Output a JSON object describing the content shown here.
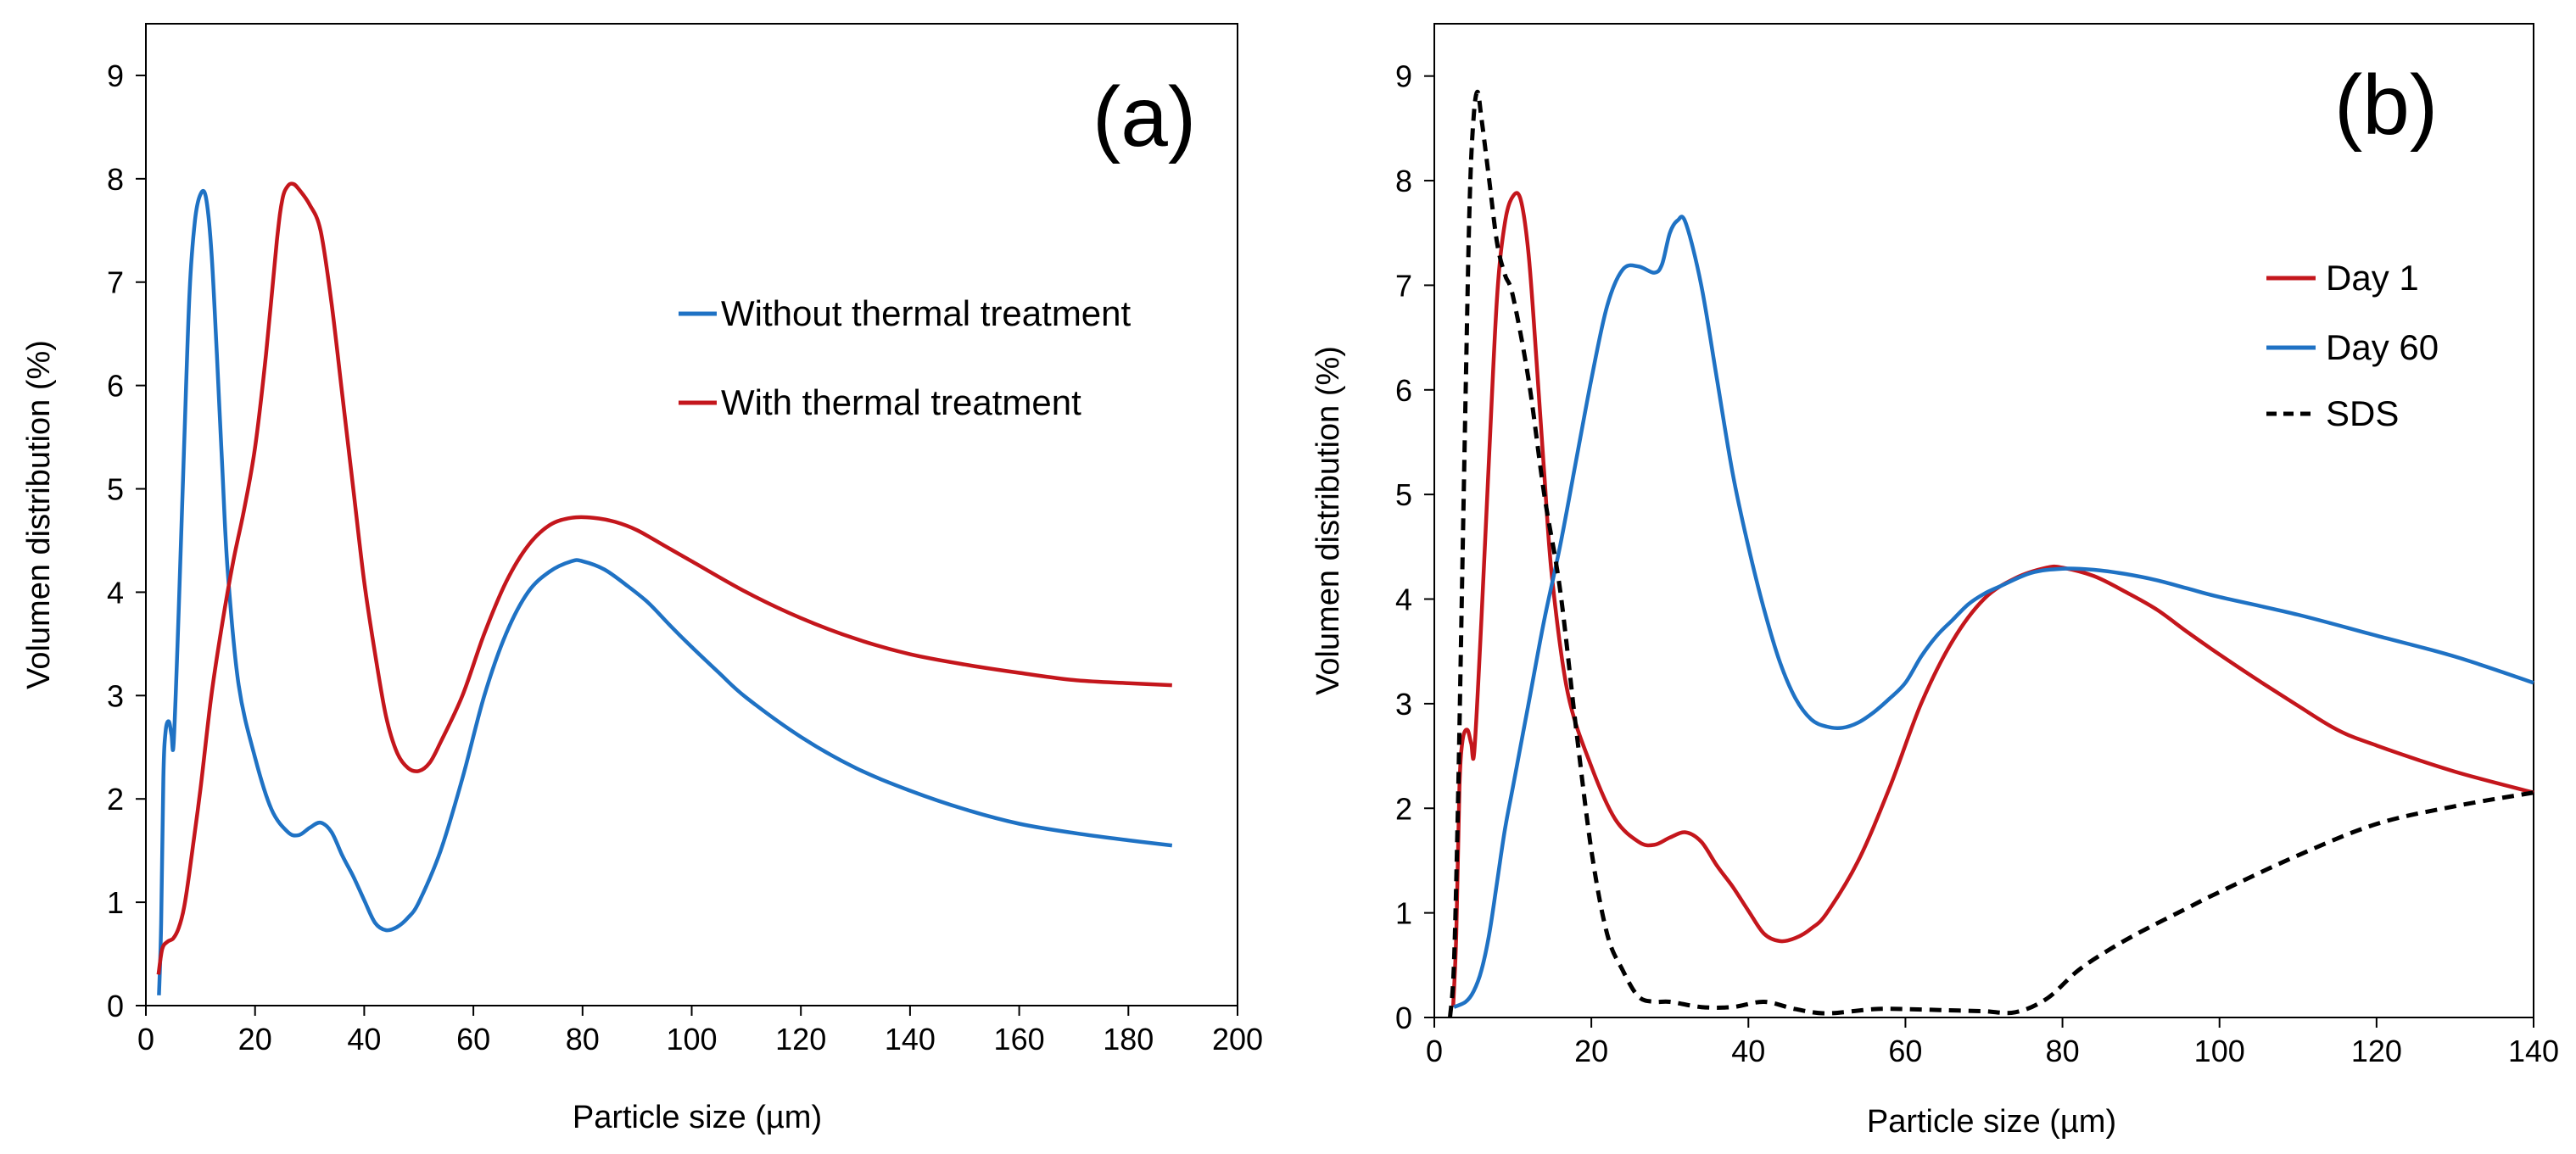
{
  "chart_data": [
    {
      "type": "line",
      "panel_label": "(a)",
      "xlabel": "Particle size (µm)",
      "ylabel": "Volumen distribution (%)",
      "xlim": [
        0,
        200
      ],
      "ylim": [
        0,
        9.5
      ],
      "xticks": [
        0,
        20,
        40,
        60,
        80,
        100,
        120,
        140,
        160,
        180,
        200
      ],
      "yticks": [
        0,
        1,
        2,
        3,
        4,
        5,
        6,
        7,
        8,
        9
      ],
      "grid": false,
      "legend_position": "top-right",
      "series": [
        {
          "name": "Without thermal treatment",
          "color": "#1f72c4",
          "dash": "solid",
          "points": [
            [
              2.4,
              0.1
            ],
            [
              2.8,
              0.8
            ],
            [
              3.2,
              2.2
            ],
            [
              3.6,
              2.65
            ],
            [
              4.2,
              2.75
            ],
            [
              4.7,
              2.62
            ],
            [
              5.1,
              2.55
            ],
            [
              6,
              3.8
            ],
            [
              7,
              5.4
            ],
            [
              8,
              6.9
            ],
            [
              9,
              7.6
            ],
            [
              10,
              7.85
            ],
            [
              11,
              7.82
            ],
            [
              12,
              7.3
            ],
            [
              13,
              6.3
            ],
            [
              14,
              5.2
            ],
            [
              15,
              4.2
            ],
            [
              17,
              3.1
            ],
            [
              20,
              2.4
            ],
            [
              23,
              1.9
            ],
            [
              26,
              1.68
            ],
            [
              28,
              1.65
            ],
            [
              30,
              1.72
            ],
            [
              32,
              1.77
            ],
            [
              34,
              1.68
            ],
            [
              36,
              1.45
            ],
            [
              38,
              1.25
            ],
            [
              40,
              1.02
            ],
            [
              42,
              0.8
            ],
            [
              44,
              0.73
            ],
            [
              46,
              0.76
            ],
            [
              48,
              0.85
            ],
            [
              50,
              1.0
            ],
            [
              54,
              1.5
            ],
            [
              58,
              2.2
            ],
            [
              62,
              3.0
            ],
            [
              66,
              3.6
            ],
            [
              70,
              4.0
            ],
            [
              74,
              4.2
            ],
            [
              78,
              4.3
            ],
            [
              80,
              4.3
            ],
            [
              84,
              4.22
            ],
            [
              88,
              4.07
            ],
            [
              92,
              3.9
            ],
            [
              96,
              3.68
            ],
            [
              100,
              3.47
            ],
            [
              105,
              3.22
            ],
            [
              110,
              2.98
            ],
            [
              120,
              2.6
            ],
            [
              130,
              2.3
            ],
            [
              140,
              2.08
            ],
            [
              150,
              1.9
            ],
            [
              160,
              1.76
            ],
            [
              170,
              1.67
            ],
            [
              180,
              1.6
            ],
            [
              188,
              1.55
            ]
          ]
        },
        {
          "name": "With thermal treatment",
          "color": "#c4161c",
          "dash": "solid",
          "points": [
            [
              2.3,
              0.3
            ],
            [
              3,
              0.55
            ],
            [
              4,
              0.62
            ],
            [
              5,
              0.65
            ],
            [
              6,
              0.75
            ],
            [
              7,
              0.95
            ],
            [
              8,
              1.3
            ],
            [
              10,
              2.1
            ],
            [
              12,
              3.0
            ],
            [
              14,
              3.7
            ],
            [
              16,
              4.3
            ],
            [
              18,
              4.8
            ],
            [
              20,
              5.4
            ],
            [
              22,
              6.3
            ],
            [
              24,
              7.4
            ],
            [
              25,
              7.8
            ],
            [
              26,
              7.93
            ],
            [
              27,
              7.95
            ],
            [
              28,
              7.9
            ],
            [
              30,
              7.75
            ],
            [
              32,
              7.5
            ],
            [
              34,
              6.8
            ],
            [
              36,
              5.9
            ],
            [
              38,
              5.0
            ],
            [
              40,
              4.1
            ],
            [
              42,
              3.4
            ],
            [
              44,
              2.8
            ],
            [
              46,
              2.45
            ],
            [
              48,
              2.3
            ],
            [
              50,
              2.27
            ],
            [
              52,
              2.35
            ],
            [
              54,
              2.55
            ],
            [
              58,
              3.0
            ],
            [
              62,
              3.6
            ],
            [
              66,
              4.1
            ],
            [
              70,
              4.45
            ],
            [
              74,
              4.65
            ],
            [
              78,
              4.72
            ],
            [
              82,
              4.72
            ],
            [
              86,
              4.68
            ],
            [
              90,
              4.6
            ],
            [
              95,
              4.45
            ],
            [
              100,
              4.3
            ],
            [
              110,
              4.0
            ],
            [
              120,
              3.75
            ],
            [
              130,
              3.55
            ],
            [
              140,
              3.4
            ],
            [
              150,
              3.3
            ],
            [
              160,
              3.22
            ],
            [
              170,
              3.15
            ],
            [
              180,
              3.12
            ],
            [
              188,
              3.1
            ]
          ]
        }
      ]
    },
    {
      "type": "line",
      "panel_label": "(b)",
      "xlabel": "Particle size (µm)",
      "ylabel": "Volumen distribution (%)",
      "xlim": [
        0,
        140
      ],
      "ylim": [
        0,
        9.5
      ],
      "xticks": [
        0,
        20,
        40,
        60,
        80,
        100,
        120,
        140
      ],
      "yticks": [
        0,
        1,
        2,
        3,
        4,
        5,
        6,
        7,
        8,
        9
      ],
      "grid": false,
      "legend_position": "top-right",
      "series": [
        {
          "name": "Day 1",
          "color": "#c4161c",
          "dash": "solid",
          "points": [
            [
              2.4,
              0.1
            ],
            [
              2.8,
              0.8
            ],
            [
              3.2,
              2.2
            ],
            [
              3.6,
              2.65
            ],
            [
              4.2,
              2.75
            ],
            [
              4.7,
              2.62
            ],
            [
              5.1,
              2.55
            ],
            [
              6,
              3.8
            ],
            [
              7,
              5.4
            ],
            [
              8,
              6.9
            ],
            [
              9,
              7.6
            ],
            [
              10,
              7.85
            ],
            [
              11,
              7.82
            ],
            [
              12,
              7.3
            ],
            [
              13,
              6.3
            ],
            [
              14,
              5.2
            ],
            [
              15,
              4.2
            ],
            [
              17,
              3.1
            ],
            [
              20,
              2.4
            ],
            [
              23,
              1.9
            ],
            [
              26,
              1.68
            ],
            [
              28,
              1.65
            ],
            [
              30,
              1.72
            ],
            [
              32,
              1.77
            ],
            [
              34,
              1.68
            ],
            [
              36,
              1.45
            ],
            [
              38,
              1.25
            ],
            [
              40,
              1.02
            ],
            [
              42,
              0.8
            ],
            [
              44,
              0.73
            ],
            [
              46,
              0.76
            ],
            [
              48,
              0.85
            ],
            [
              50,
              1.0
            ],
            [
              54,
              1.5
            ],
            [
              58,
              2.2
            ],
            [
              62,
              3.0
            ],
            [
              66,
              3.6
            ],
            [
              70,
              4.0
            ],
            [
              74,
              4.2
            ],
            [
              78,
              4.3
            ],
            [
              80,
              4.3
            ],
            [
              84,
              4.22
            ],
            [
              88,
              4.07
            ],
            [
              92,
              3.9
            ],
            [
              96,
              3.68
            ],
            [
              100,
              3.47
            ],
            [
              105,
              3.22
            ],
            [
              110,
              2.98
            ],
            [
              115,
              2.75
            ],
            [
              120,
              2.6
            ],
            [
              130,
              2.35
            ],
            [
              140,
              2.15
            ]
          ]
        },
        {
          "name": "Day 60",
          "color": "#1f72c4",
          "dash": "solid",
          "points": [
            [
              2.5,
              0.1
            ],
            [
              4,
              0.15
            ],
            [
              5,
              0.25
            ],
            [
              6,
              0.45
            ],
            [
              7,
              0.8
            ],
            [
              8,
              1.3
            ],
            [
              9,
              1.8
            ],
            [
              10,
              2.2
            ],
            [
              12,
              3.0
            ],
            [
              14,
              3.8
            ],
            [
              16,
              4.5
            ],
            [
              18,
              5.3
            ],
            [
              20,
              6.1
            ],
            [
              22,
              6.8
            ],
            [
              24,
              7.15
            ],
            [
              26,
              7.18
            ],
            [
              28,
              7.12
            ],
            [
              29,
              7.2
            ],
            [
              30,
              7.5
            ],
            [
              31,
              7.62
            ],
            [
              32,
              7.6
            ],
            [
              34,
              7.0
            ],
            [
              36,
              6.1
            ],
            [
              38,
              5.2
            ],
            [
              40,
              4.5
            ],
            [
              42,
              3.9
            ],
            [
              44,
              3.4
            ],
            [
              46,
              3.05
            ],
            [
              48,
              2.85
            ],
            [
              50,
              2.78
            ],
            [
              52,
              2.77
            ],
            [
              54,
              2.82
            ],
            [
              56,
              2.92
            ],
            [
              58,
              3.05
            ],
            [
              60,
              3.2
            ],
            [
              62,
              3.45
            ],
            [
              64,
              3.65
            ],
            [
              66,
              3.8
            ],
            [
              68,
              3.95
            ],
            [
              70,
              4.05
            ],
            [
              72,
              4.12
            ],
            [
              76,
              4.25
            ],
            [
              80,
              4.29
            ],
            [
              84,
              4.28
            ],
            [
              88,
              4.24
            ],
            [
              92,
              4.18
            ],
            [
              96,
              4.1
            ],
            [
              100,
              4.02
            ],
            [
              110,
              3.85
            ],
            [
              120,
              3.65
            ],
            [
              130,
              3.45
            ],
            [
              140,
              3.2
            ]
          ]
        },
        {
          "name": "SDS",
          "color": "#000000",
          "dash": "dashed",
          "points": [
            [
              2.0,
              0.0
            ],
            [
              2.5,
              0.5
            ],
            [
              3,
              2.0
            ],
            [
              3.5,
              4.0
            ],
            [
              4,
              6.0
            ],
            [
              4.5,
              7.8
            ],
            [
              5,
              8.6
            ],
            [
              5.5,
              8.85
            ],
            [
              6,
              8.6
            ],
            [
              7,
              8.0
            ],
            [
              8,
              7.4
            ],
            [
              9,
              7.1
            ],
            [
              10,
              6.9
            ],
            [
              12,
              6.1
            ],
            [
              14,
              5.0
            ],
            [
              16,
              4.1
            ],
            [
              18,
              2.8
            ],
            [
              20,
              1.6
            ],
            [
              22,
              0.8
            ],
            [
              24,
              0.45
            ],
            [
              26,
              0.2
            ],
            [
              28,
              0.15
            ],
            [
              30,
              0.15
            ],
            [
              34,
              0.1
            ],
            [
              38,
              0.1
            ],
            [
              42,
              0.15
            ],
            [
              46,
              0.08
            ],
            [
              50,
              0.04
            ],
            [
              56,
              0.08
            ],
            [
              60,
              0.08
            ],
            [
              65,
              0.07
            ],
            [
              70,
              0.06
            ],
            [
              74,
              0.05
            ],
            [
              78,
              0.18
            ],
            [
              82,
              0.45
            ],
            [
              86,
              0.65
            ],
            [
              90,
              0.82
            ],
            [
              96,
              1.05
            ],
            [
              100,
              1.2
            ],
            [
              110,
              1.55
            ],
            [
              120,
              1.85
            ],
            [
              130,
              2.02
            ],
            [
              140,
              2.15
            ]
          ]
        }
      ]
    }
  ]
}
